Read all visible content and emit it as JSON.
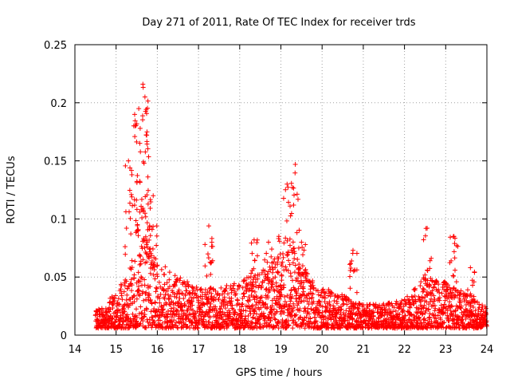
{
  "chart_data": {
    "type": "scatter",
    "title": "Day 271 of 2011, Rate Of TEC Index for receiver trds",
    "xlabel": "GPS time / hours",
    "ylabel": "ROTI / TECUs",
    "xlim": [
      14,
      24
    ],
    "ylim": [
      0,
      0.25
    ],
    "xticks": [
      "14",
      "15",
      "16",
      "17",
      "18",
      "19",
      "20",
      "21",
      "22",
      "23",
      "24"
    ],
    "yticks": [
      "0",
      "0.05",
      "0.1",
      "0.15",
      "0.2",
      "0.25"
    ],
    "grid": true,
    "marker": "plus",
    "color": "#ff0000",
    "peaks": {
      "x": [
        15.3,
        15.45,
        15.55,
        15.65,
        15.7,
        15.75,
        15.9,
        17.25,
        18.35,
        18.7,
        18.95,
        19.15,
        19.35,
        19.5,
        20.75,
        22.55,
        23.2,
        23.6
      ],
      "y": [
        0.15,
        0.19,
        0.195,
        0.216,
        0.205,
        0.175,
        0.12,
        0.094,
        0.082,
        0.08,
        0.085,
        0.13,
        0.147,
        0.08,
        0.073,
        0.092,
        0.085,
        0.058
      ]
    },
    "envelope": {
      "x": [
        14.5,
        15.0,
        15.3,
        15.5,
        15.7,
        16.0,
        16.5,
        17.0,
        17.5,
        18.0,
        18.5,
        19.0,
        19.3,
        19.7,
        20.0,
        20.5,
        21.0,
        21.5,
        22.0,
        22.5,
        23.0,
        23.5,
        24.0
      ],
      "y": [
        0.015,
        0.03,
        0.05,
        0.07,
        0.085,
        0.06,
        0.045,
        0.035,
        0.035,
        0.04,
        0.05,
        0.065,
        0.07,
        0.045,
        0.035,
        0.03,
        0.02,
        0.022,
        0.025,
        0.045,
        0.04,
        0.03,
        0.018
      ]
    }
  }
}
